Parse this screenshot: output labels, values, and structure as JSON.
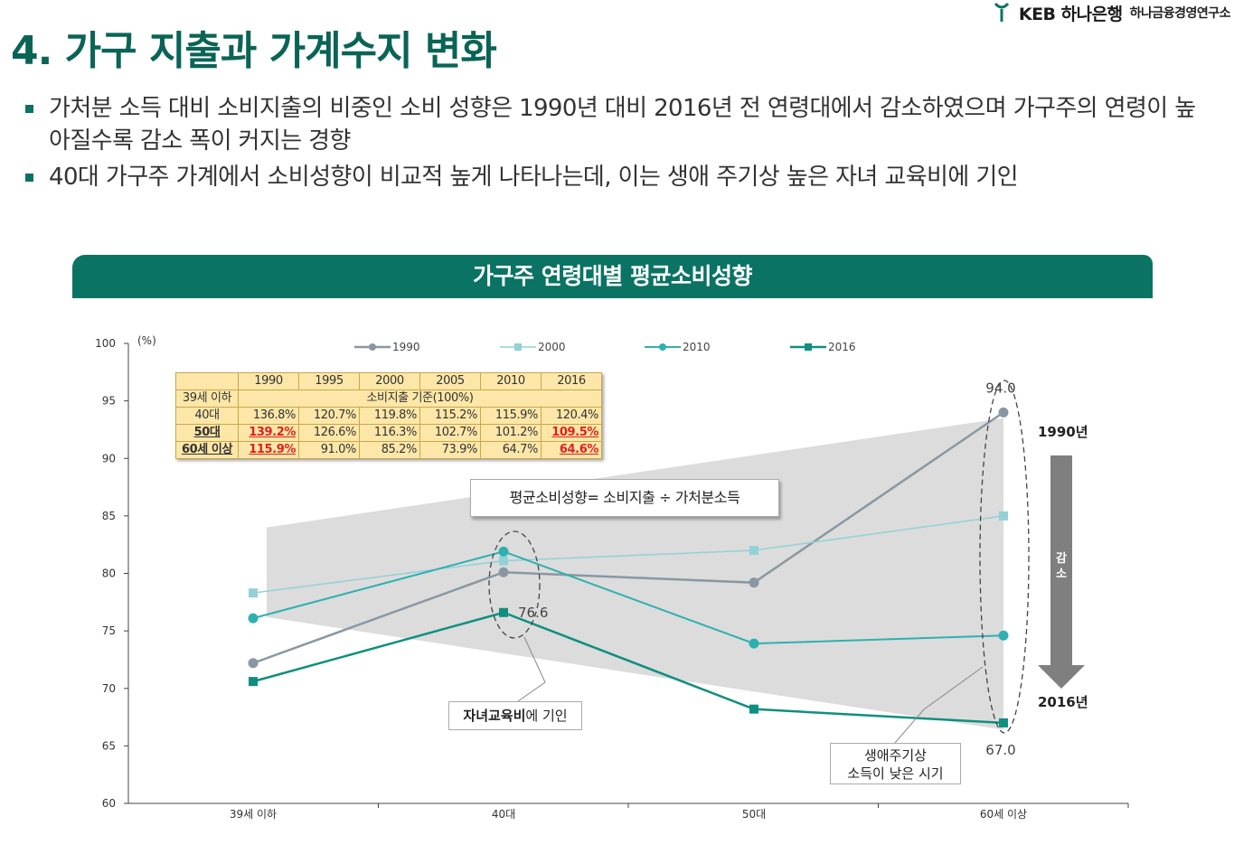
{
  "logo": {
    "main": "KEB 하나은행",
    "sub": "하나금융경영연구소"
  },
  "title": "4. 가구 지출과 가계수지 변화",
  "bullets": [
    "가처분 소득 대비 소비지출의 비중인 소비 성향은 1990년 대비 2016년 전 연령대에서 감소하였으며 가구주의 연령이 높아질수록 감소 폭이 커지는 경향",
    "40대 가구주 가계에서 소비성향이 비교적 높게 나타나는데, 이는 생애 주기상 높은 자녀 교육비에 기인"
  ],
  "banner": "가구주 연령대별 평균소비성향",
  "colors": {
    "s1990": "#8a97a3",
    "s2000": "#93d1d6",
    "s2010": "#2fb0b0",
    "s2016": "#0f8f80",
    "band": "#dcdcdc",
    "green": "#0a7363"
  },
  "chart_data": {
    "type": "line",
    "title": "가구주 연령대별 평균소비성향",
    "ylabel": "(%)",
    "ylim": [
      60,
      100
    ],
    "yticks": [
      60,
      65,
      70,
      75,
      80,
      85,
      90,
      95,
      100
    ],
    "categories": [
      "39세 이하",
      "40대",
      "50대",
      "60세 이상"
    ],
    "series": [
      {
        "name": "1990",
        "values": [
          72.2,
          80.1,
          79.2,
          94.0
        ]
      },
      {
        "name": "2000",
        "values": [
          78.3,
          81.1,
          82.0,
          85.0
        ]
      },
      {
        "name": "2010",
        "values": [
          76.1,
          81.9,
          73.9,
          74.6
        ]
      },
      {
        "name": "2016",
        "values": [
          70.6,
          76.6,
          68.2,
          67.0
        ]
      }
    ],
    "data_labels": [
      "94.0",
      "76.6",
      "67.0"
    ]
  },
  "table": {
    "header": [
      "",
      "1990",
      "1995",
      "2000",
      "2005",
      "2010",
      "2016"
    ],
    "base_row": {
      "label": "39세 이하",
      "note": "소비지출 기준(100%)"
    },
    "rows": [
      {
        "label": "40대",
        "values": [
          "136.8%",
          "120.7%",
          "119.8%",
          "115.2%",
          "115.9%",
          "120.4%"
        ]
      },
      {
        "label": "50대",
        "values": [
          "139.2%",
          "126.6%",
          "116.3%",
          "102.7%",
          "101.2%",
          "109.5%"
        ]
      },
      {
        "label": "60세 이상",
        "values": [
          "115.9%",
          "91.0%",
          "85.2%",
          "73.9%",
          "64.7%",
          "64.6%"
        ]
      }
    ]
  },
  "annotations": {
    "formula": "평균소비성향= 소비지출 ÷ 가처분소득",
    "edu_bold": "자녀교육비",
    "edu_rest": "에 기인",
    "lifecycle_line1": "생애주기상",
    "lifecycle_line2": "소득이 낮은 시기",
    "year_top": "1990년",
    "year_bottom": "2016년",
    "decrease": "감소"
  }
}
